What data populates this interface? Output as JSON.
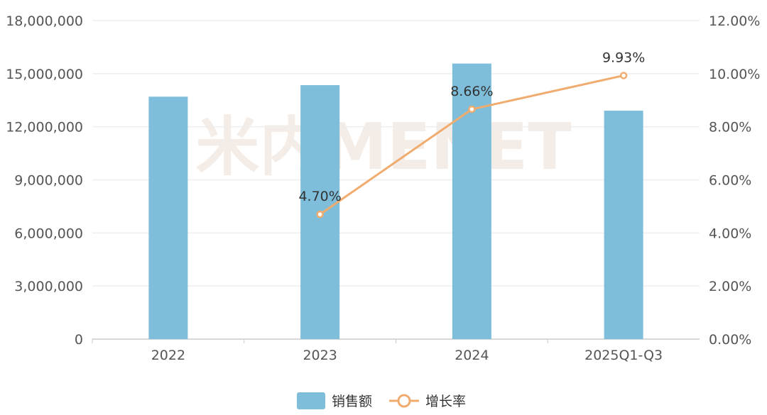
{
  "chart_data": {
    "type": "bar+line",
    "categories": [
      "2022",
      "2023",
      "2024",
      "2025Q1-Q3"
    ],
    "series": [
      {
        "name": "销售额",
        "type": "bar",
        "axis": "left",
        "color": "#7ebedb",
        "values": [
          13700000,
          14350000,
          15570000,
          12910000
        ]
      },
      {
        "name": "增长率",
        "type": "line",
        "axis": "right",
        "color": "#f0ac6e",
        "values": [
          null,
          4.7,
          8.66,
          9.93
        ],
        "labels": [
          "",
          "4.70%",
          "8.66%",
          "9.93%"
        ]
      }
    ],
    "y_left": {
      "range": [
        0,
        18000000
      ],
      "ticks": [
        0,
        3000000,
        6000000,
        9000000,
        12000000,
        15000000,
        18000000
      ],
      "tick_labels": [
        "0",
        "3,000,000",
        "6,000,000",
        "9,000,000",
        "12,000,000",
        "15,000,000",
        "18,000,000"
      ]
    },
    "y_right": {
      "range": [
        0,
        12
      ],
      "ticks": [
        0,
        2,
        4,
        6,
        8,
        10,
        12
      ],
      "tick_labels": [
        "0.00%",
        "2.00%",
        "4.00%",
        "6.00%",
        "8.00%",
        "10.00%",
        "12.00%"
      ]
    },
    "grid": true,
    "legend": "bottom",
    "watermark": "米内MENET"
  }
}
